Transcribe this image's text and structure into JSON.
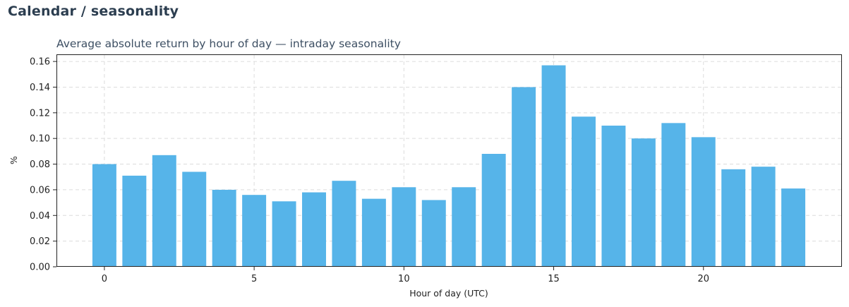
{
  "page": {
    "section_title": "Calendar / seasonality"
  },
  "chart_data": {
    "type": "bar",
    "title": "Average absolute return by hour of day — intraday seasonality",
    "xlabel": "Hour of day (UTC)",
    "ylabel": "%",
    "x": [
      0,
      1,
      2,
      3,
      4,
      5,
      6,
      7,
      8,
      9,
      10,
      11,
      12,
      13,
      14,
      15,
      16,
      17,
      18,
      19,
      20,
      21,
      22,
      23
    ],
    "values": [
      0.08,
      0.071,
      0.087,
      0.074,
      0.06,
      0.056,
      0.051,
      0.058,
      0.067,
      0.053,
      0.062,
      0.052,
      0.062,
      0.088,
      0.14,
      0.157,
      0.117,
      0.11,
      0.1,
      0.112,
      0.101,
      0.076,
      0.078,
      0.061
    ],
    "xlim": [
      -1.6,
      24.6
    ],
    "ylim": [
      0,
      0.165
    ],
    "xticks": [
      0,
      5,
      10,
      15,
      20
    ],
    "yticks": [
      0,
      0.02,
      0.04,
      0.06,
      0.08,
      0.1,
      0.12,
      0.14,
      0.16
    ],
    "ytick_labels": [
      "0.00",
      "0.02",
      "0.04",
      "0.06",
      "0.08",
      "0.10",
      "0.12",
      "0.14",
      "0.16"
    ],
    "grid": true,
    "bar_color": "#56b4e9",
    "title_color": "#3d4f63"
  }
}
